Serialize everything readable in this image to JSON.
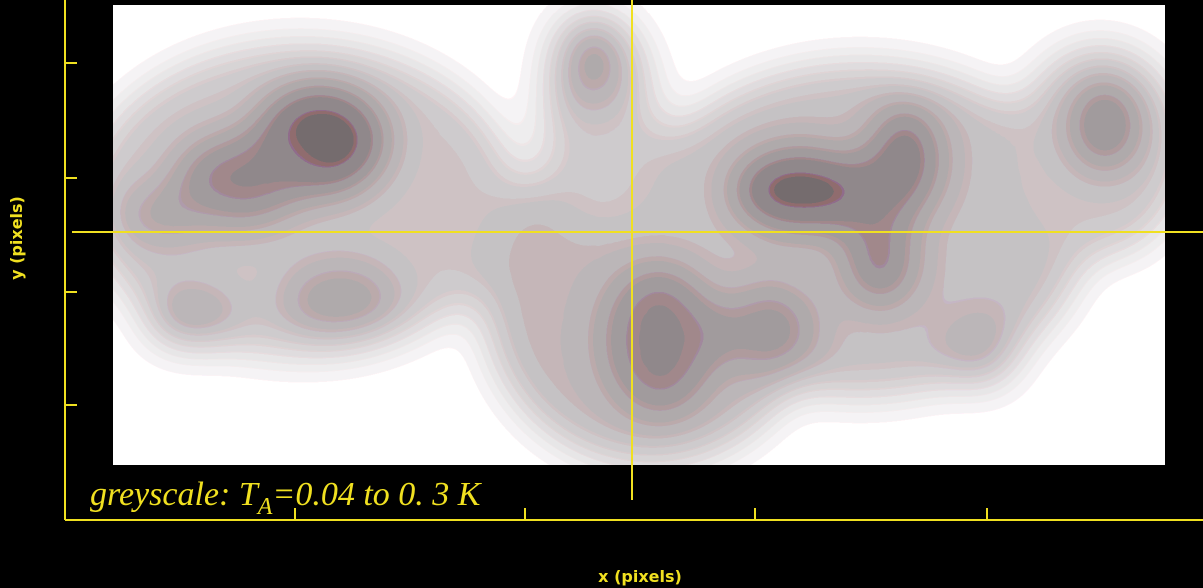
{
  "axis_labels": {
    "x": "x (pixels)",
    "y": "y (pixels)"
  },
  "annotation": {
    "prefix": "greyscale: T",
    "subscript": "A",
    "suffix": "=0.04 to 0. 3 K"
  }
}
